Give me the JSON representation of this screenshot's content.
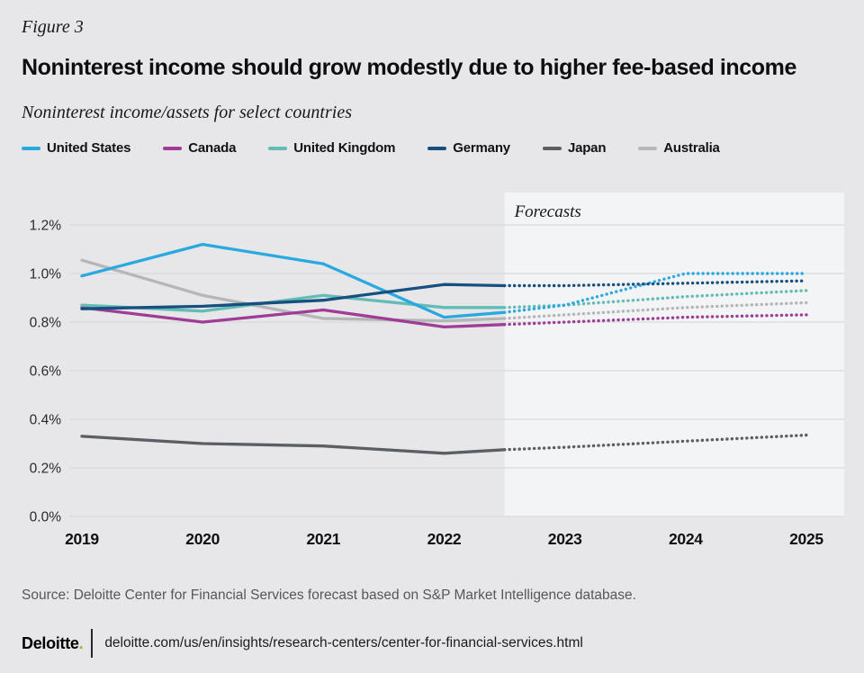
{
  "page": {
    "figure_label": "Figure 3",
    "title": "Noninterest income should grow modestly due to higher fee-based income",
    "subtitle": "Noninterest income/assets for select countries",
    "source": "Source: Deloitte Center for Financial Services forecast based on S&P Market Intelligence database.",
    "footer": {
      "brand": "Deloitte",
      "brand_period": ".",
      "brand_dot_color": "#86BC25",
      "url": "deloitte.com/us/en/insights/research-centers/center-for-financial-services.html"
    }
  },
  "chart_data": {
    "type": "line",
    "title": "Noninterest income should grow modestly due to higher fee-based income",
    "subtitle": "Noninterest income/assets for select countries",
    "x": [
      "2019",
      "2020",
      "2021",
      "2022",
      "2023",
      "2024",
      "2025"
    ],
    "ylim": [
      0,
      1.2
    ],
    "ytick_values": [
      0,
      0.2,
      0.4,
      0.6,
      0.8,
      1.0,
      1.2
    ],
    "ytick_labels": [
      "0.0%",
      "0.2%",
      "0.4%",
      "0.6%",
      "0.8%",
      "1.0%",
      "1.2%"
    ],
    "grid": "horizontal",
    "legend_position": "top",
    "forecast_label": "Forecasts",
    "forecast_start_x": "2022.5",
    "forecast_first_index": 4,
    "forecast_region_color": "#F3F4F5",
    "gridline_color": "#D3D4D6",
    "series": [
      {
        "name": "United States",
        "color": "#2AA9E0",
        "values": [
          0.99,
          1.12,
          1.04,
          0.82,
          0.87,
          1.0,
          1.0
        ],
        "boundary_value": 0.84
      },
      {
        "name": "Canada",
        "color": "#9E3C96",
        "values": [
          0.86,
          0.8,
          0.85,
          0.78,
          0.8,
          0.82,
          0.83
        ],
        "boundary_value": 0.79
      },
      {
        "name": "United Kingdom",
        "color": "#63BCB6",
        "values": [
          0.87,
          0.845,
          0.91,
          0.86,
          0.87,
          0.905,
          0.93
        ],
        "boundary_value": 0.86
      },
      {
        "name": "Germany",
        "color": "#17507F",
        "values": [
          0.855,
          0.865,
          0.89,
          0.955,
          0.95,
          0.96,
          0.97
        ],
        "boundary_value": 0.95
      },
      {
        "name": "Japan",
        "color": "#5B5E62",
        "values": [
          0.33,
          0.3,
          0.29,
          0.26,
          0.285,
          0.31,
          0.335
        ],
        "boundary_value": 0.275
      },
      {
        "name": "Australia",
        "color": "#B5B6B8",
        "values": [
          1.055,
          0.91,
          0.815,
          0.805,
          0.83,
          0.86,
          0.88
        ],
        "boundary_value": 0.815
      }
    ]
  }
}
